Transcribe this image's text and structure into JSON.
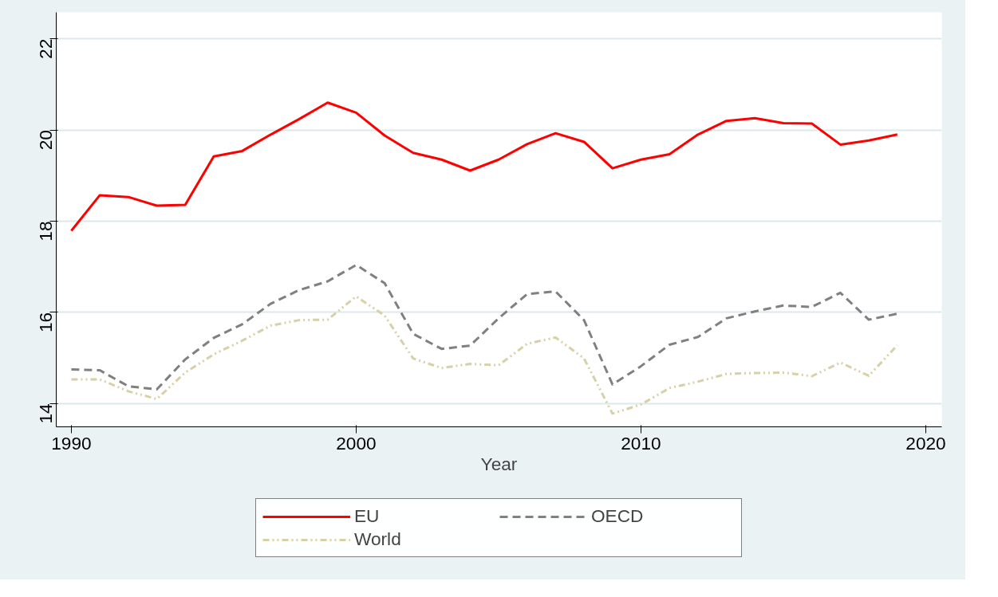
{
  "chart_data": {
    "type": "line",
    "xlabel": "Year",
    "x": [
      1990,
      1991,
      1992,
      1993,
      1994,
      1995,
      1996,
      1997,
      1998,
      1999,
      2000,
      2001,
      2002,
      2003,
      2004,
      2005,
      2006,
      2007,
      2008,
      2009,
      2010,
      2011,
      2012,
      2013,
      2014,
      2015,
      2016,
      2017,
      2018,
      2019
    ],
    "series": [
      {
        "name": "EU",
        "color": "#ff0000",
        "line_style": "solid",
        "values": [
          17.79,
          18.57,
          18.53,
          18.34,
          18.36,
          19.42,
          19.54,
          19.9,
          20.24,
          20.6,
          20.38,
          19.88,
          19.5,
          19.35,
          19.11,
          19.35,
          19.69,
          19.93,
          19.74,
          19.16,
          19.35,
          19.47,
          19.9,
          20.2,
          20.26,
          20.15,
          20.14,
          19.68,
          19.77,
          19.9
        ]
      },
      {
        "name": "OECD",
        "color": "#808080",
        "line_style": "dashed",
        "values": [
          14.75,
          14.73,
          14.38,
          14.31,
          14.97,
          15.44,
          15.74,
          16.19,
          16.49,
          16.68,
          17.04,
          16.64,
          15.53,
          15.2,
          15.27,
          15.87,
          16.4,
          16.46,
          15.83,
          14.42,
          14.82,
          15.29,
          15.46,
          15.87,
          16.02,
          16.15,
          16.12,
          16.43,
          15.84,
          15.97
        ]
      },
      {
        "name": "World",
        "color": "#d8d0a8",
        "line_style": "dotted",
        "values": [
          14.53,
          14.53,
          14.27,
          14.1,
          14.68,
          15.08,
          15.38,
          15.71,
          15.83,
          15.84,
          16.35,
          15.93,
          14.99,
          14.78,
          14.87,
          14.84,
          15.31,
          15.45,
          14.99,
          13.78,
          13.98,
          14.34,
          14.48,
          14.65,
          14.67,
          14.68,
          14.6,
          14.9,
          14.61,
          15.28
        ]
      }
    ],
    "xlim": [
      1989.47,
      2020.56
    ],
    "xticks": [
      1990,
      2000,
      2010,
      2020
    ],
    "ylim": [
      13.49,
      22.58
    ],
    "yticks": [
      14,
      16,
      18,
      20,
      22
    ],
    "grid": "y",
    "legend": "bottom",
    "marker": "none"
  }
}
